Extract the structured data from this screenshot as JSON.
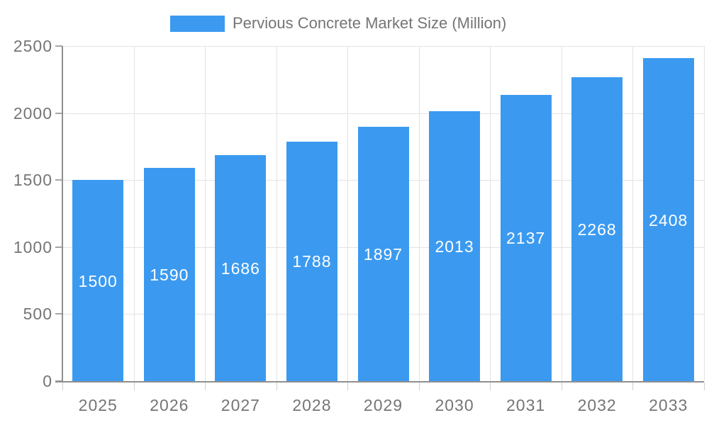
{
  "legend": {
    "label": "Pervious Concrete Market Size (Million)"
  },
  "chart_data": {
    "type": "bar",
    "title": "Pervious Concrete Market Size (Million)",
    "series_name": "Pervious Concrete Market Size (Million)",
    "categories": [
      "2025",
      "2026",
      "2027",
      "2028",
      "2029",
      "2030",
      "2031",
      "2032",
      "2033"
    ],
    "values": [
      1500,
      1590,
      1686,
      1788,
      1897,
      2013,
      2137,
      2268,
      2408
    ],
    "xlabel": "",
    "ylabel": "",
    "ylim": [
      0,
      2500
    ],
    "yticks": [
      0,
      500,
      1000,
      1500,
      2000,
      2500
    ],
    "grid": true,
    "legend_position": "top",
    "bar_color": "#3b9af0",
    "bar_label_color": "#ffffff",
    "axis_text_color": "#757575",
    "grid_color": "#e3e3e3",
    "axis_line_color": "#8f8f8f"
  }
}
